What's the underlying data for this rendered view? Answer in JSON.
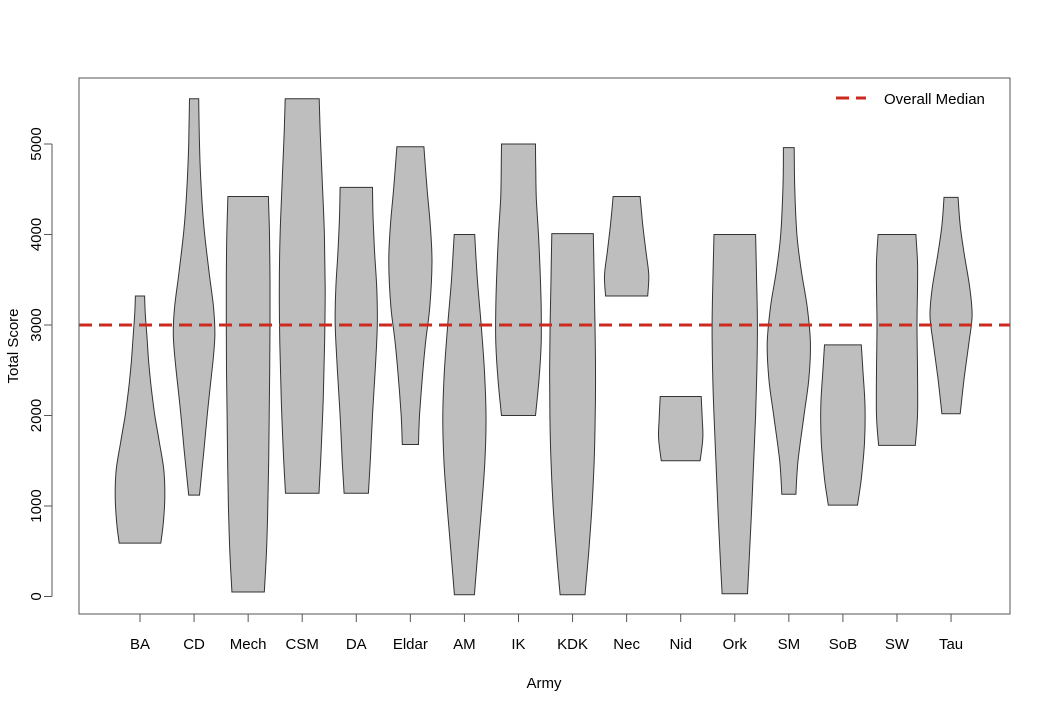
{
  "chart_data": {
    "type": "violin",
    "xlabel": "Army",
    "ylabel": "Total Score",
    "ylim": [
      -200,
      5780
    ],
    "yticks": [
      0,
      1000,
      2000,
      3000,
      4000,
      5000
    ],
    "grid": false,
    "legend": {
      "position": "top-right",
      "entries": [
        {
          "label": "Overall Median",
          "color": "#cc2a1f",
          "style": "dashed"
        }
      ]
    },
    "reference_line": {
      "name": "Overall Median",
      "value": 3000,
      "color": "#cc2a1f"
    },
    "fill_color": "#bebebe",
    "categories": [
      "BA",
      "CD",
      "Mech",
      "CSM",
      "DA",
      "Eldar",
      "AM",
      "IK",
      "KDK",
      "Nec",
      "Nid",
      "Ork",
      "SM",
      "SoB",
      "SW",
      "Tau"
    ],
    "violins": [
      {
        "name": "BA",
        "min": 590,
        "max": 3320,
        "profile": [
          [
            590,
            0.77
          ],
          [
            800,
            0.86
          ],
          [
            1100,
            0.92
          ],
          [
            1400,
            0.88
          ],
          [
            1700,
            0.72
          ],
          [
            2000,
            0.55
          ],
          [
            2300,
            0.42
          ],
          [
            2600,
            0.32
          ],
          [
            2900,
            0.25
          ],
          [
            3100,
            0.2
          ],
          [
            3320,
            0.17
          ]
        ]
      },
      {
        "name": "CD",
        "min": 1120,
        "max": 5500,
        "profile": [
          [
            1120,
            0.2
          ],
          [
            1600,
            0.36
          ],
          [
            2100,
            0.52
          ],
          [
            2600,
            0.7
          ],
          [
            2900,
            0.77
          ],
          [
            3200,
            0.72
          ],
          [
            3600,
            0.55
          ],
          [
            4100,
            0.36
          ],
          [
            4600,
            0.25
          ],
          [
            5000,
            0.2
          ],
          [
            5500,
            0.17
          ]
        ]
      },
      {
        "name": "Mech",
        "min": 50,
        "max": 4420,
        "profile": [
          [
            50,
            0.6
          ],
          [
            500,
            0.68
          ],
          [
            1000,
            0.73
          ],
          [
            1500,
            0.76
          ],
          [
            2000,
            0.78
          ],
          [
            2500,
            0.8
          ],
          [
            3000,
            0.81
          ],
          [
            3500,
            0.81
          ],
          [
            4000,
            0.79
          ],
          [
            4420,
            0.75
          ]
        ]
      },
      {
        "name": "CSM",
        "min": 1140,
        "max": 5500,
        "profile": [
          [
            1140,
            0.62
          ],
          [
            1600,
            0.7
          ],
          [
            2200,
            0.78
          ],
          [
            2800,
            0.83
          ],
          [
            3400,
            0.85
          ],
          [
            4000,
            0.82
          ],
          [
            4600,
            0.74
          ],
          [
            5100,
            0.67
          ],
          [
            5500,
            0.63
          ]
        ]
      },
      {
        "name": "DA",
        "min": 1140,
        "max": 4520,
        "profile": [
          [
            1140,
            0.45
          ],
          [
            1500,
            0.52
          ],
          [
            2000,
            0.6
          ],
          [
            2500,
            0.7
          ],
          [
            3000,
            0.78
          ],
          [
            3400,
            0.76
          ],
          [
            3800,
            0.68
          ],
          [
            4200,
            0.62
          ],
          [
            4520,
            0.6
          ]
        ]
      },
      {
        "name": "Eldar",
        "min": 1680,
        "max": 4970,
        "profile": [
          [
            1680,
            0.3
          ],
          [
            2000,
            0.34
          ],
          [
            2400,
            0.44
          ],
          [
            2800,
            0.56
          ],
          [
            3200,
            0.72
          ],
          [
            3700,
            0.8
          ],
          [
            4100,
            0.74
          ],
          [
            4500,
            0.62
          ],
          [
            4970,
            0.5
          ]
        ]
      },
      {
        "name": "AM",
        "min": 20,
        "max": 4000,
        "profile": [
          [
            20,
            0.37
          ],
          [
            500,
            0.5
          ],
          [
            1000,
            0.64
          ],
          [
            1500,
            0.76
          ],
          [
            2000,
            0.8
          ],
          [
            2500,
            0.74
          ],
          [
            3000,
            0.62
          ],
          [
            3500,
            0.48
          ],
          [
            4000,
            0.38
          ]
        ]
      },
      {
        "name": "IK",
        "min": 2000,
        "max": 5000,
        "profile": [
          [
            2000,
            0.63
          ],
          [
            2400,
            0.76
          ],
          [
            2800,
            0.84
          ],
          [
            3200,
            0.84
          ],
          [
            3600,
            0.8
          ],
          [
            4000,
            0.74
          ],
          [
            4400,
            0.66
          ],
          [
            4700,
            0.64
          ],
          [
            5000,
            0.63
          ]
        ]
      },
      {
        "name": "KDK",
        "min": 20,
        "max": 4010,
        "profile": [
          [
            20,
            0.46
          ],
          [
            500,
            0.6
          ],
          [
            1000,
            0.72
          ],
          [
            1500,
            0.8
          ],
          [
            2000,
            0.84
          ],
          [
            2500,
            0.85
          ],
          [
            3000,
            0.83
          ],
          [
            3500,
            0.8
          ],
          [
            4010,
            0.77
          ]
        ]
      },
      {
        "name": "Nec",
        "min": 3320,
        "max": 4420,
        "profile": [
          [
            3320,
            0.78
          ],
          [
            3550,
            0.82
          ],
          [
            3800,
            0.72
          ],
          [
            4100,
            0.6
          ],
          [
            4420,
            0.5
          ]
        ]
      },
      {
        "name": "Nid",
        "min": 1500,
        "max": 2210,
        "profile": [
          [
            1500,
            0.72
          ],
          [
            1750,
            0.82
          ],
          [
            1950,
            0.8
          ],
          [
            2210,
            0.76
          ]
        ]
      },
      {
        "name": "Ork",
        "min": 30,
        "max": 4000,
        "profile": [
          [
            30,
            0.47
          ],
          [
            500,
            0.55
          ],
          [
            1000,
            0.63
          ],
          [
            1500,
            0.7
          ],
          [
            2000,
            0.77
          ],
          [
            2500,
            0.82
          ],
          [
            3000,
            0.84
          ],
          [
            3500,
            0.81
          ],
          [
            4000,
            0.77
          ]
        ]
      },
      {
        "name": "SM",
        "min": 1130,
        "max": 4960,
        "profile": [
          [
            1130,
            0.26
          ],
          [
            1500,
            0.34
          ],
          [
            2000,
            0.56
          ],
          [
            2400,
            0.74
          ],
          [
            2800,
            0.8
          ],
          [
            3200,
            0.68
          ],
          [
            3600,
            0.46
          ],
          [
            4000,
            0.3
          ],
          [
            4500,
            0.22
          ],
          [
            4960,
            0.2
          ]
        ]
      },
      {
        "name": "SoB",
        "min": 1010,
        "max": 2780,
        "profile": [
          [
            1010,
            0.54
          ],
          [
            1300,
            0.68
          ],
          [
            1700,
            0.8
          ],
          [
            2100,
            0.82
          ],
          [
            2500,
            0.74
          ],
          [
            2780,
            0.68
          ]
        ]
      },
      {
        "name": "SW",
        "min": 1670,
        "max": 4000,
        "profile": [
          [
            1670,
            0.68
          ],
          [
            2000,
            0.76
          ],
          [
            2500,
            0.76
          ],
          [
            3000,
            0.74
          ],
          [
            3400,
            0.76
          ],
          [
            3700,
            0.76
          ],
          [
            4000,
            0.7
          ]
        ]
      },
      {
        "name": "Tau",
        "min": 2020,
        "max": 4410,
        "profile": [
          [
            2020,
            0.34
          ],
          [
            2400,
            0.48
          ],
          [
            2800,
            0.66
          ],
          [
            3100,
            0.78
          ],
          [
            3400,
            0.7
          ],
          [
            3800,
            0.48
          ],
          [
            4100,
            0.34
          ],
          [
            4410,
            0.26
          ]
        ]
      }
    ]
  }
}
